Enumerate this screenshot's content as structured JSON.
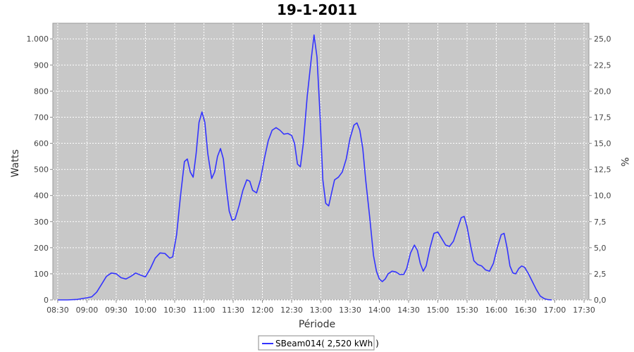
{
  "chart_data": {
    "type": "line",
    "title": "19-1-2011",
    "xlabel": "Période",
    "ylabel": "Watts",
    "y2label": "%",
    "xlim": [
      505,
      1055
    ],
    "ylim": [
      0,
      1060
    ],
    "y2lim": [
      0,
      26.5
    ],
    "grid": true,
    "legend_position": "bottom",
    "x_ticks": [
      {
        "t": 510,
        "label": "08:30"
      },
      {
        "t": 540,
        "label": "09:00"
      },
      {
        "t": 570,
        "label": "09:30"
      },
      {
        "t": 600,
        "label": "10:00"
      },
      {
        "t": 630,
        "label": "10:30"
      },
      {
        "t": 660,
        "label": "11:00"
      },
      {
        "t": 690,
        "label": "11:30"
      },
      {
        "t": 720,
        "label": "12:00"
      },
      {
        "t": 750,
        "label": "12:30"
      },
      {
        "t": 780,
        "label": "13:00"
      },
      {
        "t": 810,
        "label": "13:30"
      },
      {
        "t": 840,
        "label": "14:00"
      },
      {
        "t": 870,
        "label": "14:30"
      },
      {
        "t": 900,
        "label": "15:00"
      },
      {
        "t": 930,
        "label": "15:30"
      },
      {
        "t": 960,
        "label": "16:00"
      },
      {
        "t": 990,
        "label": "16:30"
      },
      {
        "t": 1020,
        "label": "17:00"
      },
      {
        "t": 1050,
        "label": "17:30"
      }
    ],
    "y_ticks": [
      {
        "v": 0,
        "label": "0"
      },
      {
        "v": 100,
        "label": "100"
      },
      {
        "v": 200,
        "label": "200"
      },
      {
        "v": 300,
        "label": "300"
      },
      {
        "v": 400,
        "label": "400"
      },
      {
        "v": 500,
        "label": "500"
      },
      {
        "v": 600,
        "label": "600"
      },
      {
        "v": 700,
        "label": "700"
      },
      {
        "v": 800,
        "label": "800"
      },
      {
        "v": 900,
        "label": "900"
      },
      {
        "v": 1000,
        "label": "1.000"
      }
    ],
    "y2_ticks": [
      {
        "v": 0,
        "label": "0,0"
      },
      {
        "v": 2.5,
        "label": "2,5"
      },
      {
        "v": 5,
        "label": "5,0"
      },
      {
        "v": 7.5,
        "label": "7,5"
      },
      {
        "v": 10,
        "label": "10,0"
      },
      {
        "v": 12.5,
        "label": "12,5"
      },
      {
        "v": 15,
        "label": "15,0"
      },
      {
        "v": 17.5,
        "label": "17,5"
      },
      {
        "v": 20,
        "label": "20,0"
      },
      {
        "v": 22.5,
        "label": "22,5"
      },
      {
        "v": 25,
        "label": "25,0"
      }
    ],
    "series": [
      {
        "name": "SBeam014( 2,520 kWh )",
        "color": "#3333ff",
        "points": [
          [
            510,
            0
          ],
          [
            520,
            0
          ],
          [
            530,
            2
          ],
          [
            540,
            8
          ],
          [
            545,
            12
          ],
          [
            550,
            30
          ],
          [
            555,
            60
          ],
          [
            560,
            90
          ],
          [
            565,
            103
          ],
          [
            570,
            100
          ],
          [
            575,
            85
          ],
          [
            580,
            80
          ],
          [
            585,
            90
          ],
          [
            590,
            103
          ],
          [
            595,
            95
          ],
          [
            600,
            88
          ],
          [
            605,
            120
          ],
          [
            610,
            160
          ],
          [
            615,
            180
          ],
          [
            620,
            178
          ],
          [
            625,
            160
          ],
          [
            628,
            165
          ],
          [
            632,
            250
          ],
          [
            636,
            400
          ],
          [
            640,
            530
          ],
          [
            643,
            540
          ],
          [
            646,
            490
          ],
          [
            649,
            470
          ],
          [
            652,
            560
          ],
          [
            655,
            680
          ],
          [
            658,
            720
          ],
          [
            661,
            680
          ],
          [
            664,
            560
          ],
          [
            668,
            465
          ],
          [
            671,
            490
          ],
          [
            674,
            550
          ],
          [
            677,
            580
          ],
          [
            680,
            540
          ],
          [
            683,
            430
          ],
          [
            686,
            340
          ],
          [
            689,
            305
          ],
          [
            692,
            310
          ],
          [
            696,
            360
          ],
          [
            700,
            420
          ],
          [
            704,
            460
          ],
          [
            707,
            455
          ],
          [
            710,
            420
          ],
          [
            714,
            410
          ],
          [
            718,
            460
          ],
          [
            722,
            540
          ],
          [
            726,
            610
          ],
          [
            730,
            650
          ],
          [
            734,
            660
          ],
          [
            738,
            650
          ],
          [
            742,
            635
          ],
          [
            746,
            638
          ],
          [
            750,
            630
          ],
          [
            753,
            600
          ],
          [
            756,
            520
          ],
          [
            759,
            510
          ],
          [
            762,
            600
          ],
          [
            766,
            780
          ],
          [
            770,
            920
          ],
          [
            773,
            1015
          ],
          [
            776,
            930
          ],
          [
            779,
            720
          ],
          [
            782,
            460
          ],
          [
            785,
            370
          ],
          [
            788,
            360
          ],
          [
            791,
            410
          ],
          [
            794,
            460
          ],
          [
            798,
            470
          ],
          [
            802,
            490
          ],
          [
            806,
            540
          ],
          [
            810,
            620
          ],
          [
            814,
            670
          ],
          [
            817,
            678
          ],
          [
            820,
            650
          ],
          [
            823,
            580
          ],
          [
            826,
            460
          ],
          [
            830,
            320
          ],
          [
            834,
            170
          ],
          [
            837,
            110
          ],
          [
            840,
            80
          ],
          [
            843,
            70
          ],
          [
            846,
            80
          ],
          [
            849,
            100
          ],
          [
            853,
            110
          ],
          [
            857,
            107
          ],
          [
            861,
            97
          ],
          [
            865,
            98
          ],
          [
            868,
            120
          ],
          [
            872,
            180
          ],
          [
            876,
            210
          ],
          [
            879,
            190
          ],
          [
            882,
            140
          ],
          [
            885,
            110
          ],
          [
            888,
            130
          ],
          [
            892,
            200
          ],
          [
            896,
            255
          ],
          [
            900,
            260
          ],
          [
            904,
            235
          ],
          [
            908,
            210
          ],
          [
            912,
            205
          ],
          [
            916,
            225
          ],
          [
            920,
            270
          ],
          [
            924,
            315
          ],
          [
            927,
            320
          ],
          [
            930,
            280
          ],
          [
            934,
            200
          ],
          [
            937,
            150
          ],
          [
            941,
            135
          ],
          [
            945,
            130
          ],
          [
            949,
            115
          ],
          [
            953,
            110
          ],
          [
            957,
            140
          ],
          [
            961,
            200
          ],
          [
            965,
            250
          ],
          [
            968,
            255
          ],
          [
            971,
            200
          ],
          [
            974,
            130
          ],
          [
            977,
            103
          ],
          [
            980,
            100
          ],
          [
            983,
            120
          ],
          [
            986,
            130
          ],
          [
            989,
            125
          ],
          [
            993,
            100
          ],
          [
            997,
            70
          ],
          [
            1001,
            40
          ],
          [
            1005,
            15
          ],
          [
            1009,
            5
          ],
          [
            1013,
            1
          ],
          [
            1017,
            0
          ]
        ]
      }
    ]
  }
}
